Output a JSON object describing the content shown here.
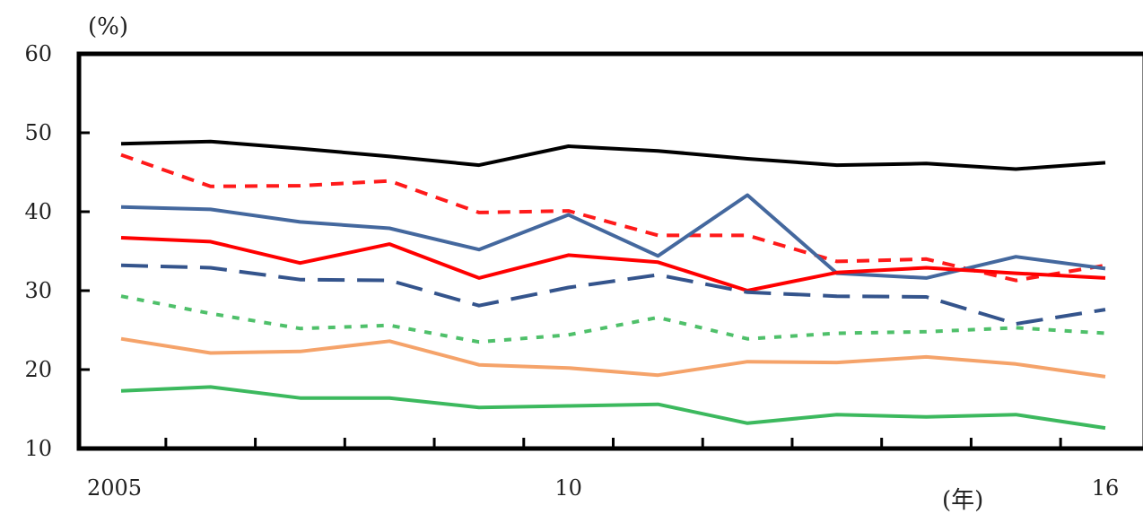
{
  "chart_data": {
    "type": "line",
    "y_unit_label": "(%)",
    "x_unit_label": "(年)",
    "ylim": [
      10,
      60
    ],
    "xlim": [
      2005,
      2016
    ],
    "y_ticks": [
      10,
      20,
      30,
      40,
      50,
      60
    ],
    "y_tick_labels": [
      "10",
      "20",
      "30",
      "40",
      "50",
      "60"
    ],
    "x_tick_labels": [
      {
        "x": 2005,
        "label": "2005"
      },
      {
        "x": 2010,
        "label": "10"
      },
      {
        "x": 2016,
        "label": "16"
      }
    ],
    "grid": false,
    "x": [
      2005,
      2006,
      2007,
      2008,
      2009,
      2010,
      2011,
      2012,
      2013,
      2014,
      2015,
      2016
    ],
    "series": [
      {
        "color": "#000000",
        "style": "solid",
        "values": [
          48.6,
          48.9,
          48.0,
          47.0,
          45.9,
          48.3,
          47.7,
          46.7,
          45.9,
          46.1,
          45.4,
          46.2
        ]
      },
      {
        "color": "#ff1a1a",
        "style": "dashed",
        "values": [
          47.2,
          43.2,
          43.3,
          43.9,
          39.9,
          40.1,
          37.0,
          37.0,
          33.7,
          34.0,
          31.3,
          33.2
        ]
      },
      {
        "color": "#44689e",
        "style": "solid",
        "values": [
          40.6,
          40.3,
          38.7,
          37.9,
          35.2,
          39.6,
          34.4,
          42.1,
          32.2,
          31.6,
          34.3,
          32.8
        ]
      },
      {
        "color": "#ff0000",
        "style": "solid",
        "values": [
          36.7,
          36.2,
          33.5,
          35.9,
          31.6,
          34.5,
          33.6,
          30.0,
          32.3,
          32.9,
          32.2,
          31.6
        ]
      },
      {
        "color": "#34548c",
        "style": "longdash",
        "values": [
          33.2,
          32.9,
          31.4,
          31.3,
          28.1,
          30.4,
          32.0,
          29.8,
          29.3,
          29.2,
          25.8,
          27.6
        ]
      },
      {
        "color": "#4fc06a",
        "style": "dotted",
        "values": [
          29.3,
          27.1,
          25.2,
          25.6,
          23.5,
          24.4,
          26.6,
          23.9,
          24.6,
          24.8,
          25.3,
          24.6
        ]
      },
      {
        "color": "#f5a36a",
        "style": "solid",
        "values": [
          23.9,
          22.1,
          22.3,
          23.6,
          20.6,
          20.2,
          19.3,
          21.0,
          20.9,
          21.6,
          20.7,
          19.1
        ]
      },
      {
        "color": "#3cb95e",
        "style": "solid",
        "values": [
          17.3,
          17.8,
          16.4,
          16.4,
          15.2,
          15.4,
          15.6,
          13.2,
          14.3,
          14.0,
          14.3,
          12.6
        ]
      }
    ]
  }
}
